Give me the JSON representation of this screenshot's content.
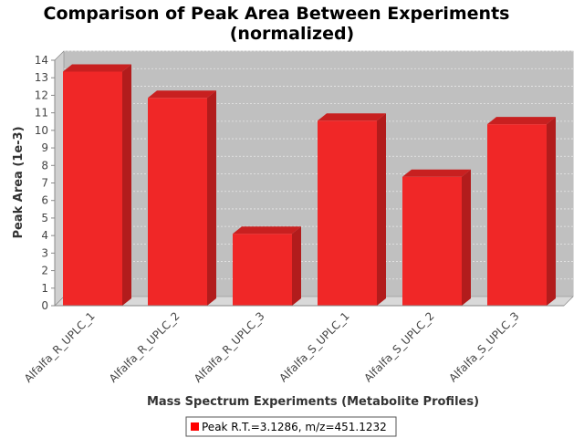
{
  "chart_data": {
    "type": "bar",
    "title_lines": [
      "Comparison of Peak Area Between Experiments",
      "(normalized)"
    ],
    "xlabel": "Mass Spectrum Experiments (Metabolite Profiles)",
    "ylabel": "Peak Area (1e-3)",
    "categories": [
      "Alfalfa_R_UPLC_1",
      "Alfalfa_R_UPLC_2",
      "Alfalfa_R_UPLC_3",
      "Alfalfa_S_UPLC_1",
      "Alfalfa_S_UPLC_2",
      "Alfalfa_S_UPLC_3"
    ],
    "series": [
      {
        "name": "Peak R.T.=3.1286, m/z=451.1232",
        "values": [
          13.35,
          11.85,
          4.1,
          10.55,
          7.35,
          10.35
        ]
      }
    ],
    "ylim": [
      0,
      14
    ],
    "yticks": [
      0,
      1,
      2,
      3,
      4,
      5,
      6,
      7,
      8,
      9,
      10,
      11,
      12,
      13,
      14
    ],
    "grid": true,
    "legend_position": "bottom",
    "colors": {
      "bar_front": "#f02727",
      "bar_top": "#c82020",
      "bar_side": "#b21c1c",
      "plot_back": "#c0c0c0",
      "plot_floor": "#d9d9d9",
      "grid": "#e8e8e8",
      "legend_swatch": "#ff0000"
    }
  }
}
